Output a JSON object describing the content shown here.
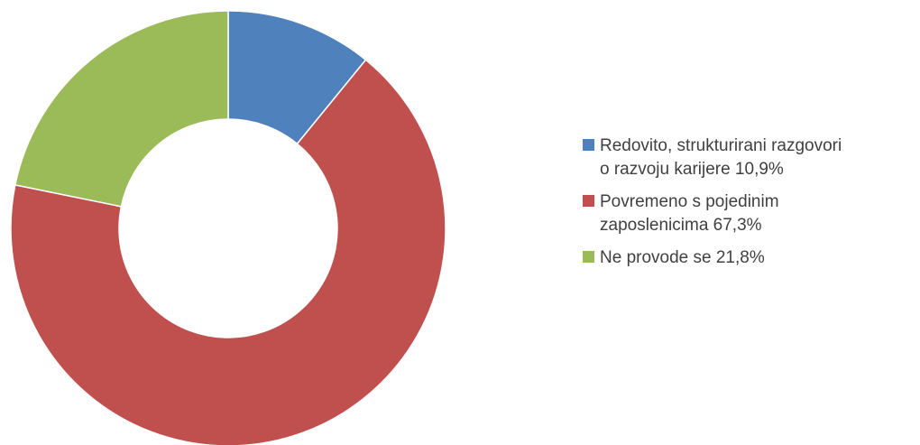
{
  "chart_data": {
    "type": "pie",
    "donut": true,
    "legend_position": "right",
    "slices": [
      {
        "label_lines": [
          "Redovito, strukturirani razgovori",
          "o razvoju karijere 10,9%"
        ],
        "value": 10.9,
        "color": "#4F81BD"
      },
      {
        "label_lines": [
          "Povremeno s pojedinim",
          "zaposlenicima 67,3%"
        ],
        "value": 67.3,
        "color": "#C0504D"
      },
      {
        "label_lines": [
          "Ne provode se 21,8%"
        ],
        "value": 21.8,
        "color": "#9BBB59"
      }
    ]
  }
}
